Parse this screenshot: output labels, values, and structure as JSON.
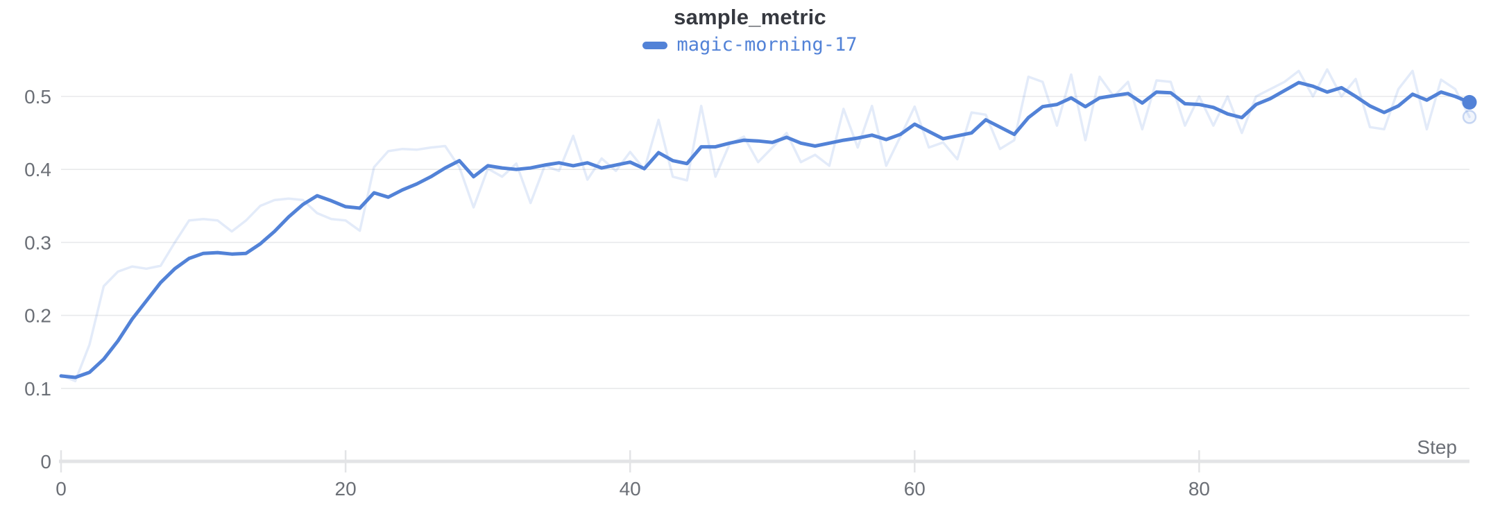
{
  "header": {
    "title": "sample_metric"
  },
  "legend": {
    "series_label": "magic-morning-17"
  },
  "colors": {
    "line": "#5282d7",
    "line_faint": "rgba(82,130,215,0.16)",
    "raw_dot_fill": "rgba(82,130,215,0.08)",
    "raw_dot_stroke": "rgba(82,130,215,0.30)",
    "title": "#363940",
    "tick_text": "#6b6f76",
    "gridline": "#e8e9eb",
    "axis_line": "#e3e4e6"
  },
  "chart_data": {
    "type": "line",
    "title": "sample_metric",
    "xlabel": "Step",
    "ylabel": "",
    "xlim": [
      0,
      99
    ],
    "ylim": [
      0,
      0.5
    ],
    "grid": "horizontal-only",
    "legend_position": "top-center",
    "x_ticks": [
      0,
      20,
      40,
      60,
      80
    ],
    "x_tick_labels": [
      "0",
      "20",
      "40",
      "60",
      "80"
    ],
    "y_ticks": [
      0,
      0.1,
      0.2,
      0.3,
      0.4,
      0.5
    ],
    "y_tick_labels": [
      "0",
      "0.1",
      "0.2",
      "0.3",
      "0.4",
      "0.5"
    ],
    "x_step": 1,
    "series": [
      {
        "name": "magic-morning-17 (original, unsmoothed)",
        "role": "raw",
        "end_marker": "hollow-dot",
        "values": [
          0.118,
          0.11,
          0.16,
          0.24,
          0.26,
          0.267,
          0.264,
          0.268,
          0.3,
          0.33,
          0.332,
          0.33,
          0.315,
          0.33,
          0.35,
          0.358,
          0.36,
          0.358,
          0.34,
          0.332,
          0.33,
          0.316,
          0.403,
          0.425,
          0.428,
          0.427,
          0.43,
          0.432,
          0.403,
          0.348,
          0.401,
          0.39,
          0.408,
          0.354,
          0.405,
          0.398,
          0.446,
          0.386,
          0.415,
          0.398,
          0.424,
          0.4,
          0.468,
          0.39,
          0.385,
          0.487,
          0.39,
          0.435,
          0.445,
          0.41,
          0.43,
          0.45,
          0.41,
          0.42,
          0.405,
          0.483,
          0.43,
          0.487,
          0.405,
          0.445,
          0.486,
          0.43,
          0.437,
          0.414,
          0.478,
          0.475,
          0.428,
          0.44,
          0.527,
          0.52,
          0.46,
          0.53,
          0.44,
          0.527,
          0.5,
          0.52,
          0.455,
          0.522,
          0.52,
          0.46,
          0.5,
          0.46,
          0.5,
          0.45,
          0.5,
          0.51,
          0.52,
          0.535,
          0.5,
          0.537,
          0.5,
          0.524,
          0.458,
          0.455,
          0.51,
          0.535,
          0.455,
          0.523,
          0.51,
          0.472
        ]
      },
      {
        "name": "magic-morning-17",
        "role": "smoothed",
        "end_marker": "solid-dot",
        "values": [
          0.117,
          0.115,
          0.122,
          0.14,
          0.165,
          0.195,
          0.22,
          0.245,
          0.264,
          0.278,
          0.285,
          0.286,
          0.284,
          0.285,
          0.298,
          0.315,
          0.335,
          0.352,
          0.364,
          0.357,
          0.349,
          0.347,
          0.368,
          0.362,
          0.372,
          0.38,
          0.39,
          0.402,
          0.412,
          0.39,
          0.405,
          0.402,
          0.4,
          0.402,
          0.406,
          0.409,
          0.405,
          0.409,
          0.402,
          0.406,
          0.41,
          0.401,
          0.423,
          0.412,
          0.408,
          0.431,
          0.431,
          0.436,
          0.44,
          0.439,
          0.437,
          0.444,
          0.436,
          0.432,
          0.436,
          0.44,
          0.443,
          0.447,
          0.441,
          0.448,
          0.462,
          0.452,
          0.442,
          0.446,
          0.45,
          0.468,
          0.458,
          0.448,
          0.471,
          0.486,
          0.489,
          0.498,
          0.486,
          0.498,
          0.501,
          0.504,
          0.491,
          0.506,
          0.505,
          0.49,
          0.489,
          0.485,
          0.476,
          0.471,
          0.489,
          0.497,
          0.508,
          0.519,
          0.514,
          0.506,
          0.512,
          0.5,
          0.487,
          0.478,
          0.487,
          0.503,
          0.495,
          0.506,
          0.5,
          0.492
        ]
      }
    ]
  }
}
